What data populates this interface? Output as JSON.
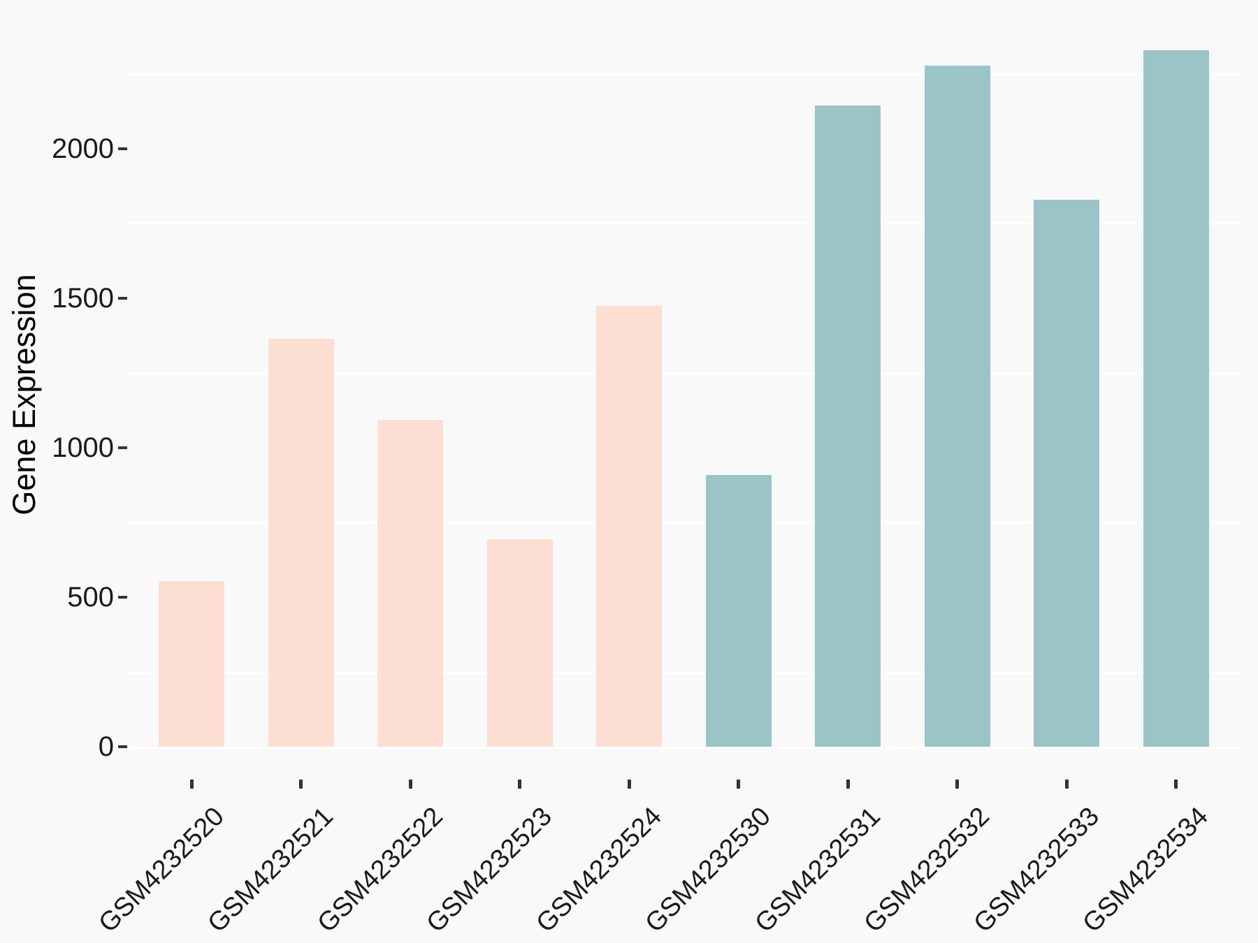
{
  "chart_data": {
    "type": "bar",
    "title": "",
    "xlabel": "",
    "ylabel": "Gene Expression",
    "categories": [
      "GSM4232520",
      "GSM4232521",
      "GSM4232522",
      "GSM4232523",
      "GSM4232524",
      "GSM4232530",
      "GSM4232531",
      "GSM4232532",
      "GSM4232533",
      "GSM4232534"
    ],
    "values": [
      555,
      1365,
      1095,
      695,
      1475,
      910,
      2145,
      2280,
      1830,
      2330
    ],
    "bar_colors": [
      "#fcded2",
      "#fcded2",
      "#fcded2",
      "#fcded2",
      "#fcded2",
      "#9ac4c6",
      "#9ac4c6",
      "#9ac4c6",
      "#9ac4c6",
      "#9ac4c6"
    ],
    "ylim": [
      0,
      2450
    ],
    "y_tick_labels": [
      "0",
      "500",
      "1000",
      "1500",
      "2000"
    ],
    "y_major_ticks": [
      0,
      500,
      1000,
      1500,
      2000
    ],
    "y_minor_gridlines": [
      250,
      750,
      1250,
      1750,
      2250
    ],
    "grid": "white minor gridlines on light gray panel, baseline line at 0",
    "legend": "none",
    "x_tick_label_angle": 45
  },
  "style": {
    "background": "#f9f9f9",
    "gridline_color": "#ffffff",
    "tick_mark_color": "#333333",
    "axis_text_color": "#1a1a1a",
    "axis_title_color": "#000000",
    "group1_fill": "#fcded2",
    "group2_fill": "#9ac4c6"
  }
}
